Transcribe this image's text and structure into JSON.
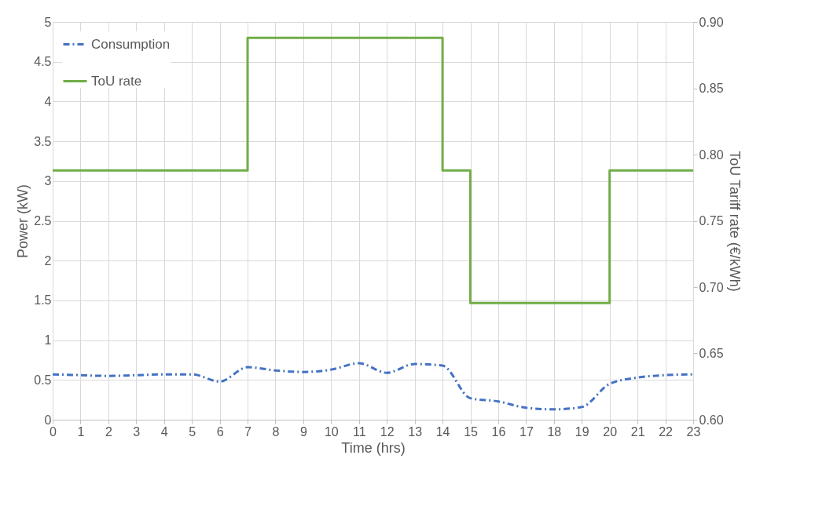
{
  "chart_data": {
    "type": "line",
    "xlabel": "Time (hrs)",
    "ylabel": "Power (kW)",
    "y2label": "ToU Tariff rate (€/kWh)",
    "x": [
      0,
      1,
      2,
      3,
      4,
      5,
      6,
      7,
      8,
      9,
      10,
      11,
      12,
      13,
      14,
      15,
      16,
      17,
      18,
      19,
      20,
      21,
      22,
      23
    ],
    "series": [
      {
        "name": "Consumption",
        "color": "#4472c4",
        "line_style": "dashed",
        "values": [
          0.57,
          0.56,
          0.55,
          0.56,
          0.57,
          0.57,
          0.48,
          0.66,
          0.62,
          0.6,
          0.63,
          0.71,
          0.59,
          0.7,
          0.68,
          0.27,
          0.23,
          0.15,
          0.13,
          0.16,
          0.45,
          0.53,
          0.56,
          0.57
        ]
      },
      {
        "name": "ToU rate",
        "type": "step",
        "axis": "y2",
        "color": "#70ad47",
        "line_style": "solid",
        "values": [
          0.788,
          0.788,
          0.788,
          0.788,
          0.788,
          0.788,
          0.788,
          0.888,
          0.888,
          0.888,
          0.888,
          0.888,
          0.888,
          0.888,
          0.788,
          0.688,
          0.688,
          0.688,
          0.688,
          0.688,
          0.788,
          0.788,
          0.788,
          0.788
        ]
      }
    ],
    "xlim": [
      0,
      23
    ],
    "xticks": [
      0,
      1,
      2,
      3,
      4,
      5,
      6,
      7,
      8,
      9,
      10,
      11,
      12,
      13,
      14,
      15,
      16,
      17,
      18,
      19,
      20,
      21,
      22,
      23
    ],
    "ylim": [
      0,
      5
    ],
    "yticks": [
      0,
      0.5,
      1,
      1.5,
      2,
      2.5,
      3,
      3.5,
      4,
      4.5,
      5
    ],
    "y2lim": [
      0.6,
      0.9
    ],
    "y2ticks": [
      {
        "value": 0.6,
        "label": "0.60"
      },
      {
        "value": 0.65,
        "label": "0.65"
      },
      {
        "value": 0.7,
        "label": "0.70"
      },
      {
        "value": 0.75,
        "label": "0.75"
      },
      {
        "value": 0.8,
        "label": "0.80"
      },
      {
        "value": 0.85,
        "label": "0.85"
      },
      {
        "value": 0.9,
        "label": "0.90"
      }
    ],
    "grid": true,
    "legend": "top left",
    "marker": "none"
  }
}
